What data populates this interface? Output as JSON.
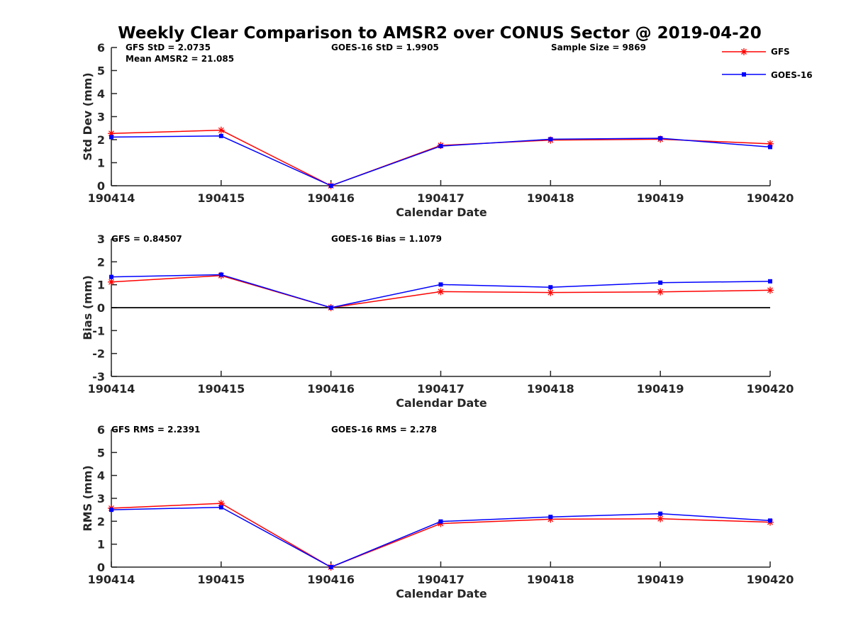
{
  "chart_data": [
    {
      "type": "line",
      "title": "Weekly Clear Comparison to AMSR2 over CONUS Sector @ 2019-04-20",
      "xlabel": "Calendar Date",
      "ylabel": "Std Dev (mm)",
      "ylim": [
        0,
        6
      ],
      "yticks": [
        "0",
        "1",
        "2",
        "3",
        "4",
        "5",
        "6"
      ],
      "categories": [
        "190414",
        "190415",
        "190416",
        "190417",
        "190418",
        "190419",
        "190420"
      ],
      "series": [
        {
          "name": "GFS",
          "color": "#ff0000",
          "marker": "asterisk",
          "values": [
            2.27,
            2.41,
            0.0,
            1.75,
            1.98,
            2.02,
            1.82
          ]
        },
        {
          "name": "GOES-16",
          "color": "#0000ff",
          "marker": "square",
          "values": [
            2.11,
            2.16,
            0.0,
            1.72,
            2.02,
            2.06,
            1.68
          ]
        }
      ],
      "annotations": {
        "gfs_std": "GFS StD = 2.0735",
        "mean_amsr2": "Mean AMSR2 = 21.085",
        "goes_std": "GOES-16 StD = 1.9905",
        "sample_size": "Sample Size = 9869"
      },
      "legend": {
        "position": "top-right",
        "entries": [
          "GFS",
          "GOES-16"
        ]
      },
      "grid": false
    },
    {
      "type": "line",
      "xlabel": "Calendar Date",
      "ylabel": "Bias (mm)",
      "ylim": [
        -3,
        3
      ],
      "yticks": [
        "-3",
        "-2",
        "-1",
        "0",
        "1",
        "2",
        "3"
      ],
      "categories": [
        "190414",
        "190415",
        "190416",
        "190417",
        "190418",
        "190419",
        "190420"
      ],
      "zero_line": true,
      "series": [
        {
          "name": "GFS",
          "color": "#ff0000",
          "marker": "asterisk",
          "values": [
            1.12,
            1.4,
            0.0,
            0.7,
            0.66,
            0.69,
            0.76
          ]
        },
        {
          "name": "GOES-16",
          "color": "#0000ff",
          "marker": "square",
          "values": [
            1.34,
            1.44,
            0.0,
            1.01,
            0.89,
            1.09,
            1.15
          ]
        }
      ],
      "annotations": {
        "gfs_bias": "GFS = 0.84507",
        "goes_bias": "GOES-16 Bias  = 1.1079"
      },
      "grid": false
    },
    {
      "type": "line",
      "xlabel": "Calendar Date",
      "ylabel": "RMS (mm)",
      "ylim": [
        0,
        6
      ],
      "yticks": [
        "0",
        "1",
        "2",
        "3",
        "4",
        "5",
        "6"
      ],
      "categories": [
        "190414",
        "190415",
        "190416",
        "190417",
        "190418",
        "190419",
        "190420"
      ],
      "series": [
        {
          "name": "GFS",
          "color": "#ff0000",
          "marker": "asterisk",
          "values": [
            2.57,
            2.78,
            0.0,
            1.9,
            2.09,
            2.11,
            1.96
          ]
        },
        {
          "name": "GOES-16",
          "color": "#0000ff",
          "marker": "square",
          "values": [
            2.5,
            2.61,
            0.0,
            1.99,
            2.19,
            2.33,
            2.03
          ]
        }
      ],
      "annotations": {
        "gfs_rms": "GFS RMS = 2.2391",
        "goes_rms": "GOES-16 RMS = 2.278"
      },
      "grid": false
    }
  ]
}
